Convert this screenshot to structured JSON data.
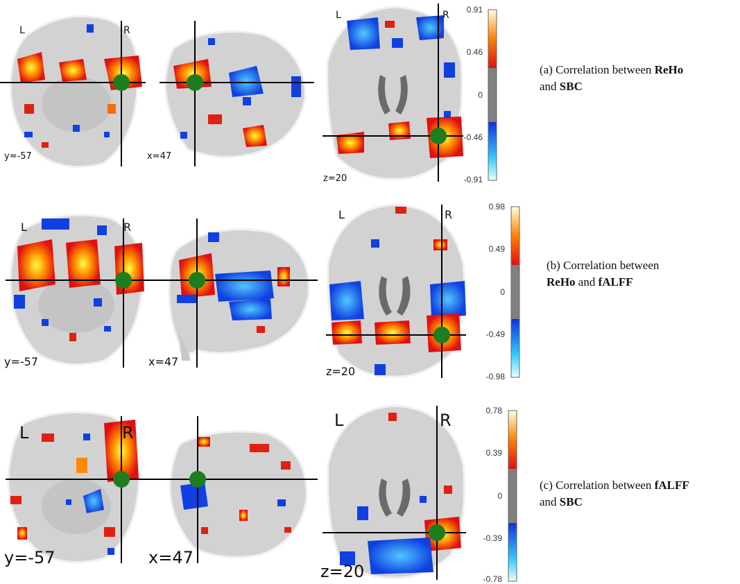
{
  "panels": [
    {
      "id": "a",
      "views": [
        {
          "view": "coronal",
          "coord_label": "y=-57",
          "left_label": "L",
          "right_label": "R"
        },
        {
          "view": "sagittal",
          "coord_label": "x=47"
        },
        {
          "view": "axial",
          "coord_label": "z=20",
          "left_label": "L",
          "right_label": "R"
        }
      ],
      "colorbar": {
        "ticks": [
          "0.91",
          "0.46",
          "0",
          "-0.46",
          "-0.91"
        ]
      },
      "caption": {
        "line1_prefix": "(a) Correlation between ",
        "line1_bold": "ReHo",
        "line2_prefix": "and ",
        "line2_bold": "SBC",
        "line2_suffix": ""
      }
    },
    {
      "id": "b",
      "views": [
        {
          "view": "coronal",
          "coord_label": "y=-57",
          "left_label": "L",
          "right_label": "R"
        },
        {
          "view": "sagittal",
          "coord_label": "x=47"
        },
        {
          "view": "axial",
          "coord_label": "z=20",
          "left_label": "L",
          "right_label": "R"
        }
      ],
      "colorbar": {
        "ticks": [
          "0.98",
          "0.49",
          "0",
          "-0.49",
          "-0.98"
        ]
      },
      "caption": {
        "line1_prefix": "(b) Correlation between",
        "line1_bold": "",
        "line2_prefix": "",
        "line2_bold": "ReHo",
        "line2_suffix": " and ",
        "line2_bold2": "fALFF"
      }
    },
    {
      "id": "c",
      "views": [
        {
          "view": "coronal",
          "coord_label": "y=-57",
          "left_label": "L",
          "right_label": "R"
        },
        {
          "view": "sagittal",
          "coord_label": "x=47"
        },
        {
          "view": "axial",
          "coord_label": "z=20",
          "left_label": "L",
          "right_label": "R"
        }
      ],
      "colorbar": {
        "ticks": [
          "0.78",
          "0.39",
          "0",
          "-0.39",
          "-0.78"
        ]
      },
      "caption": {
        "line1_prefix": "(c) Correlation between ",
        "line1_bold": "fALFF",
        "line2_prefix": "and ",
        "line2_bold": "SBC",
        "line2_suffix": ""
      }
    }
  ],
  "colors": {
    "brain_fill": "#d2d2d2",
    "brain_edge": "#f5f5f5",
    "ventricle": "#6a6a6a",
    "crosshair": "#000000",
    "seed": "#1e7d1e",
    "positive_low": "#e01010",
    "positive_mid": "#ff7a00",
    "positive_high": "#ffff30",
    "negative_low": "#1040e0",
    "negative_high": "#40e0ff"
  }
}
